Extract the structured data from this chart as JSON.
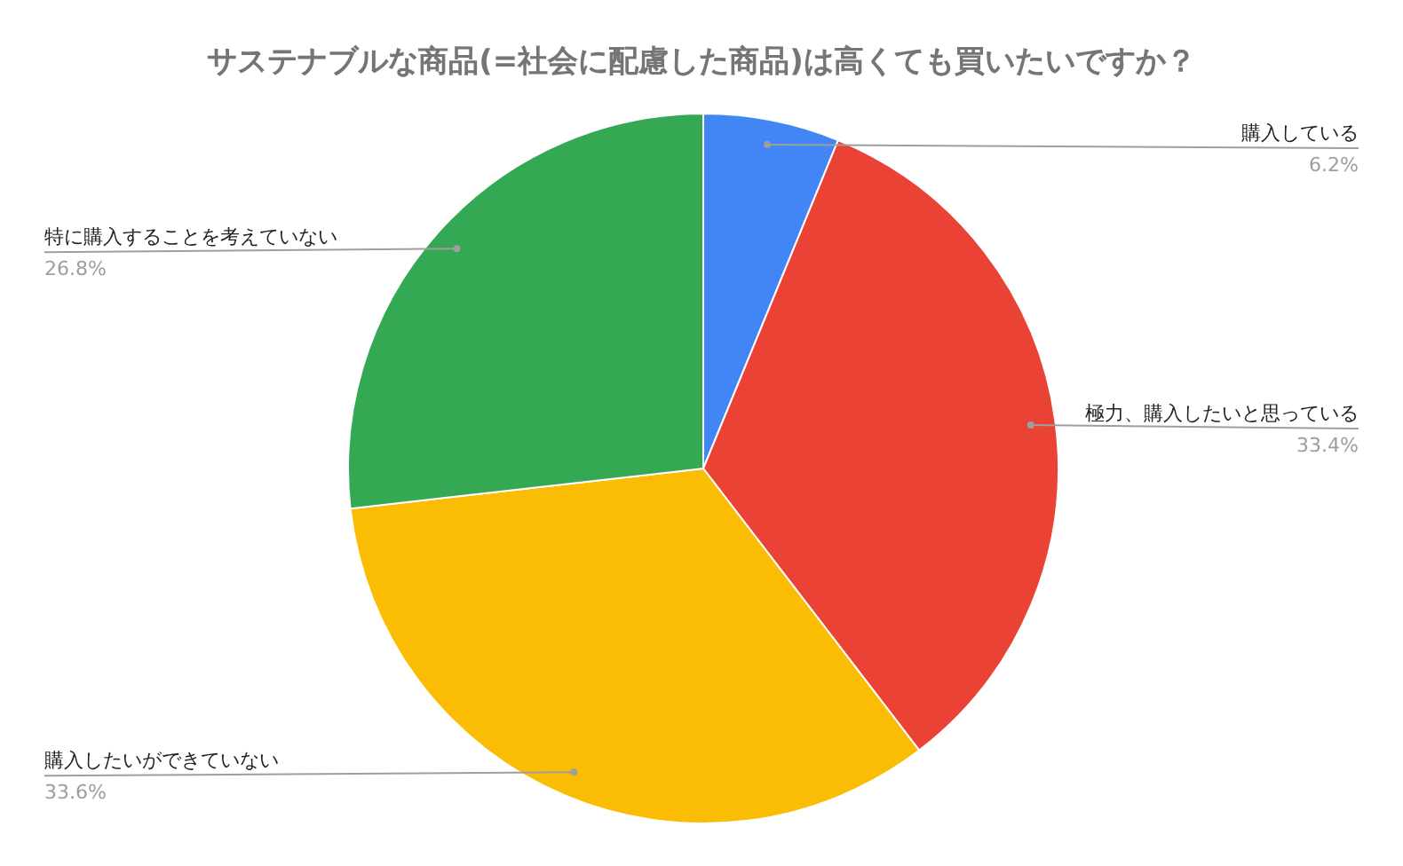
{
  "chart_data": {
    "type": "pie",
    "title": "サステナブルな商品(=社会に配慮した商品)は高くても買いたいですか？",
    "categories": [
      "購入している",
      "極力、購入したいと思っている",
      "購入したいができていない",
      "特に購入することを考えていない"
    ],
    "values": [
      6.2,
      33.4,
      33.6,
      26.8
    ],
    "colors": [
      "#4285f4",
      "#ea4335",
      "#fbbc04",
      "#34a853"
    ],
    "value_labels": [
      "6.2%",
      "33.4%",
      "33.6%",
      "26.8%"
    ],
    "legend": false
  }
}
